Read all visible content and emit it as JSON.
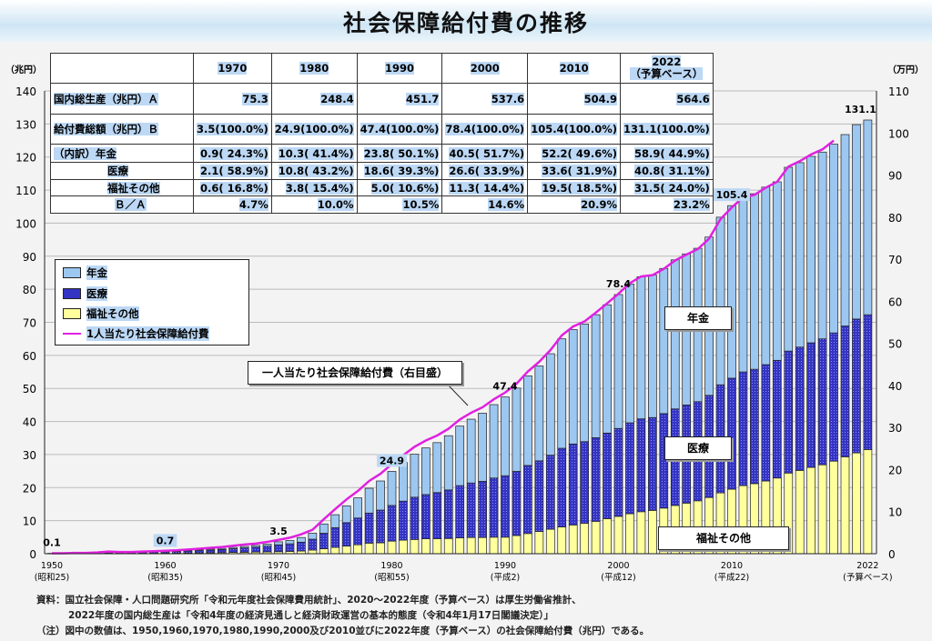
{
  "title": "社会保障給付費の推移",
  "table": {
    "headers": [
      "1970",
      "1980",
      "1990",
      "2000",
      "2010",
      "2022"
    ],
    "header_note_2022": "（予算ベース）",
    "rows": [
      {
        "label": "国内総生産（兆円）Ａ",
        "values": [
          "75.3",
          "248.4",
          "451.7",
          "537.6",
          "504.9",
          "564.6"
        ]
      },
      {
        "label": "給付費総額（兆円）Ｂ",
        "values": [
          "3.5(100.0%)",
          "24.9(100.0%)",
          "47.4(100.0%)",
          "78.4(100.0%)",
          "105.4(100.0%)",
          "131.1(100.0%)"
        ]
      },
      {
        "label": "（内訳）年金",
        "values": [
          "0.9( 24.3%)",
          "10.3( 41.4%)",
          "23.8( 50.1%)",
          "40.5( 51.7%)",
          "52.2( 49.6%)",
          "58.9( 44.9%)"
        ]
      },
      {
        "label": "医療",
        "values": [
          "2.1( 58.9%)",
          "10.8( 43.2%)",
          "18.6( 39.3%)",
          "26.6( 33.9%)",
          "33.6( 31.9%)",
          "40.8( 31.1%)"
        ]
      },
      {
        "label": "福祉その他",
        "values": [
          "0.6( 16.8%)",
          "3.8( 15.4%)",
          "5.0( 10.6%)",
          "11.3( 14.4%)",
          "19.5( 18.5%)",
          "31.5( 24.0%)"
        ]
      },
      {
        "label": "Ｂ／Ａ",
        "values": [
          "4.7%",
          "10.0%",
          "10.5%",
          "14.6%",
          "20.9%",
          "23.2%"
        ]
      }
    ]
  },
  "annotations": {
    "per_capita_note": "一人当たり社会保障給付費（右目盛）",
    "pension": "年金",
    "medical": "医療",
    "welfare": "福祉その他"
  },
  "footnotes": [
    "資料：国立社会保障・人口問題研究所「令和元年度社会保障費用統計」、2020～2022年度（予算ベース）は厚生労働省推計、",
    "2022年度の国内総生産は「令和4年度の経済見通しと経済財政運営の基本的態度（令和4年1月17日閣議決定）」",
    "（注）図中の数値は、1950,1960,1970,1980,1990,2000及び2010並びに2022年度（予算ベース）の社会保障給付費（兆円）である。"
  ],
  "colors": {
    "pension": "#9cc7f0",
    "medical": "#3434c4",
    "welfare": "#ffff9c",
    "per_capita": "#e020e0"
  },
  "chart_data": {
    "type": "bar",
    "stacked": true,
    "title": "社会保障給付費の推移",
    "ylabel_left": "（兆円）",
    "ylabel_right": "（万円）",
    "ylim_left": [
      0,
      140
    ],
    "ylim_right": [
      0,
      110
    ],
    "yticks_left": [
      0,
      10,
      20,
      30,
      40,
      50,
      60,
      70,
      80,
      90,
      100,
      110,
      120,
      130,
      140
    ],
    "yticks_right": [
      0,
      10,
      20,
      30,
      40,
      50,
      60,
      70,
      80,
      90,
      100,
      110
    ],
    "grid": true,
    "legend": [
      "年金",
      "医療",
      "福祉その他",
      "1人当たり社会保障給付費"
    ],
    "legend_position": "upper-left",
    "xticks": [
      {
        "year": 1950,
        "label": "1950",
        "sub": "(昭和25)"
      },
      {
        "year": 1960,
        "label": "1960",
        "sub": "(昭和35)"
      },
      {
        "year": 1970,
        "label": "1970",
        "sub": "(昭和45)"
      },
      {
        "year": 1980,
        "label": "1980",
        "sub": "(昭和55)"
      },
      {
        "year": 1990,
        "label": "1990",
        "sub": "(平成2)"
      },
      {
        "year": 2000,
        "label": "2000",
        "sub": "(平成12)"
      },
      {
        "year": 2010,
        "label": "2010",
        "sub": "(平成22)"
      },
      {
        "year": 2022,
        "label": "2022",
        "sub": "(予算ベース)"
      }
    ],
    "data_labels": [
      {
        "year": 1950,
        "text": "0.1",
        "hl": false
      },
      {
        "year": 1960,
        "text": "0.7",
        "hl": true
      },
      {
        "year": 1970,
        "text": "3.5",
        "hl": false
      },
      {
        "year": 1980,
        "text": "24.9",
        "hl": true
      },
      {
        "year": 1990,
        "text": "47.4",
        "hl": false
      },
      {
        "year": 2000,
        "text": "78.4",
        "hl": false
      },
      {
        "year": 2010,
        "text": "105.4",
        "hl": true
      },
      {
        "year": 2022,
        "text": "131.1",
        "hl": false
      }
    ],
    "start_year": 1950,
    "series": [
      {
        "name": "福祉その他",
        "values": [
          0.02,
          0.02,
          0.04,
          0.04,
          0.06,
          0.08,
          0.08,
          0.08,
          0.1,
          0.12,
          0.14,
          0.16,
          0.2,
          0.24,
          0.28,
          0.32,
          0.38,
          0.44,
          0.5,
          0.55,
          0.6,
          0.7,
          0.8,
          1.1,
          1.5,
          1.9,
          2.3,
          2.7,
          3.2,
          3.3,
          3.8,
          4.1,
          4.3,
          4.5,
          4.5,
          4.6,
          4.8,
          4.9,
          4.9,
          5.0,
          5.0,
          5.5,
          6.1,
          6.7,
          7.4,
          8.1,
          8.7,
          9.2,
          9.8,
          10.6,
          11.3,
          12.1,
          12.7,
          13.1,
          13.8,
          14.6,
          15.3,
          16.0,
          17.0,
          18.4,
          19.5,
          20.6,
          21.2,
          22.0,
          22.9,
          24.4,
          25.2,
          26.1,
          26.9,
          28.0,
          29.3,
          30.5,
          31.5
        ]
      },
      {
        "name": "医療",
        "values": [
          0.06,
          0.06,
          0.12,
          0.12,
          0.18,
          0.24,
          0.24,
          0.24,
          0.3,
          0.36,
          0.42,
          0.48,
          0.6,
          0.72,
          0.84,
          0.96,
          1.14,
          1.32,
          1.5,
          1.75,
          2.1,
          2.3,
          2.7,
          3.3,
          4.7,
          6.0,
          7.1,
          8.1,
          9.1,
          9.9,
          10.8,
          11.8,
          12.8,
          13.4,
          14.0,
          14.7,
          15.8,
          16.5,
          17.0,
          17.9,
          18.6,
          19.4,
          20.6,
          21.4,
          22.4,
          23.8,
          24.5,
          24.7,
          25.3,
          25.9,
          26.6,
          27.5,
          28.1,
          28.1,
          28.6,
          29.2,
          29.7,
          30.0,
          30.9,
          32.7,
          33.6,
          34.4,
          34.6,
          35.2,
          35.6,
          36.9,
          37.3,
          37.7,
          38.1,
          38.8,
          39.6,
          40.5,
          40.8
        ]
      },
      {
        "name": "年金",
        "values": [
          0.02,
          0.02,
          0.04,
          0.04,
          0.06,
          0.08,
          0.08,
          0.08,
          0.1,
          0.12,
          0.14,
          0.16,
          0.2,
          0.24,
          0.28,
          0.32,
          0.38,
          0.44,
          0.5,
          0.6,
          0.9,
          1.0,
          1.4,
          1.8,
          2.8,
          3.9,
          5.1,
          6.1,
          7.5,
          8.8,
          10.3,
          11.7,
          13.0,
          14.1,
          15.1,
          16.4,
          18.0,
          19.3,
          20.6,
          22.2,
          23.8,
          25.2,
          27.1,
          28.7,
          30.7,
          33.1,
          34.6,
          35.6,
          37.2,
          38.8,
          40.5,
          42.0,
          43.0,
          43.1,
          43.9,
          45.1,
          45.7,
          46.4,
          47.9,
          50.7,
          52.2,
          53.3,
          53.1,
          53.7,
          54.0,
          55.6,
          55.8,
          56.4,
          56.5,
          57.1,
          57.9,
          58.8,
          58.9
        ]
      }
    ],
    "line": {
      "name": "1人当たり社会保障給付費",
      "axis": "right",
      "unit": "万円",
      "values": [
        0.1,
        0.1,
        0.2,
        0.2,
        0.3,
        0.5,
        0.4,
        0.4,
        0.5,
        0.6,
        0.7,
        0.8,
        1.0,
        1.2,
        1.4,
        1.6,
        1.9,
        2.2,
        2.4,
        2.8,
        3.3,
        3.8,
        4.6,
        5.7,
        8.2,
        10.6,
        12.9,
        14.9,
        17.3,
        19.0,
        21.3,
        23.4,
        25.4,
        26.9,
        28.1,
        29.7,
        31.9,
        33.5,
        34.8,
        36.7,
        38.3,
        40.4,
        43.3,
        45.6,
        48.4,
        51.9,
        54.0,
        55.2,
        57.3,
        59.5,
        61.8,
        64.3,
        65.9,
        66.2,
        67.7,
        69.7,
        71.1,
        72.4,
        74.9,
        79.5,
        82.3,
        84.7,
        85.3,
        87.0,
        88.4,
        92.0,
        93.3,
        94.9,
        96.1,
        98.2
      ]
    }
  }
}
